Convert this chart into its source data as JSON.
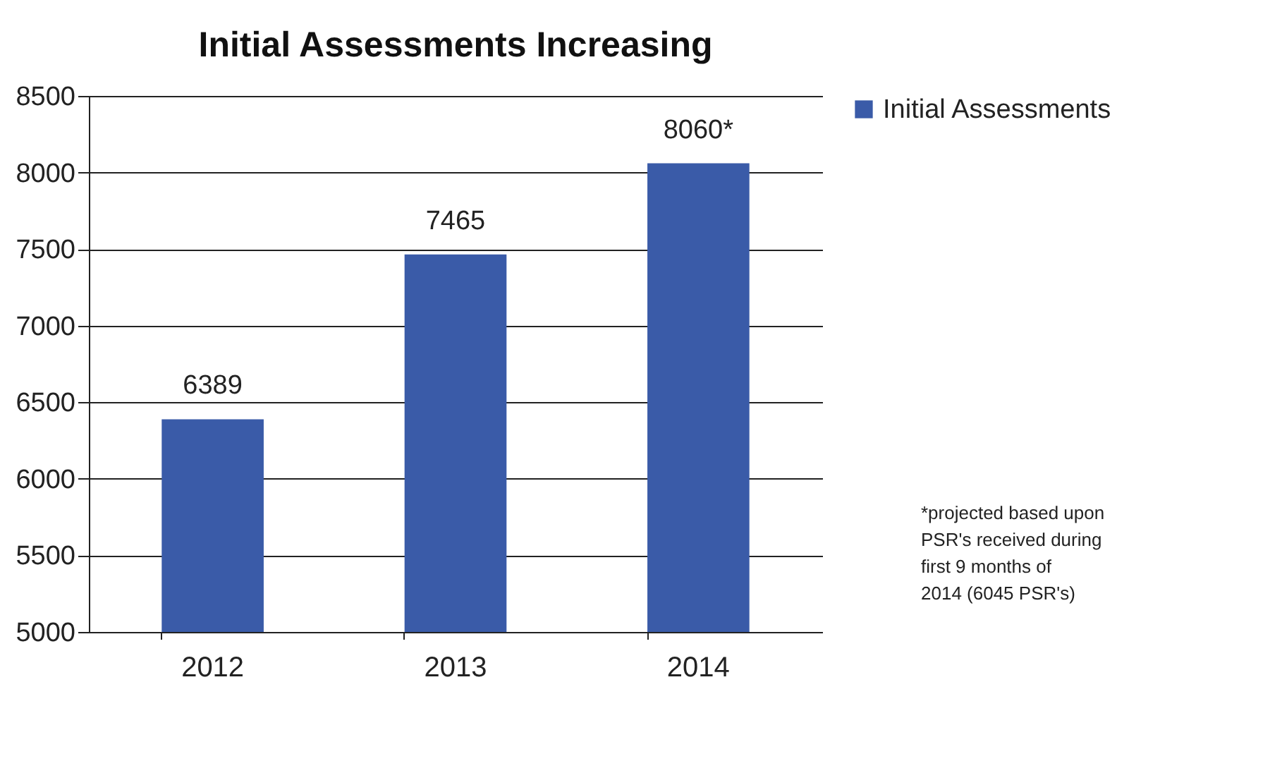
{
  "chart_data": {
    "type": "bar",
    "title": "Initial Assessments Increasing",
    "categories": [
      "2012",
      "2013",
      "2014"
    ],
    "series": [
      {
        "name": "Initial Assessments",
        "color": "#3a5ba8",
        "values": [
          6389,
          7465,
          8060
        ],
        "value_labels": [
          "6389",
          "7465",
          "8060*"
        ]
      }
    ],
    "ylim": [
      5000,
      8500
    ],
    "yticks": [
      5000,
      5500,
      6000,
      6500,
      7000,
      7500,
      8000,
      8500
    ],
    "grid": "y",
    "legend": "right",
    "annotations": [
      "*projected based upon PSR's received during first 9 months of 2014 (6045 PSR's)"
    ]
  }
}
